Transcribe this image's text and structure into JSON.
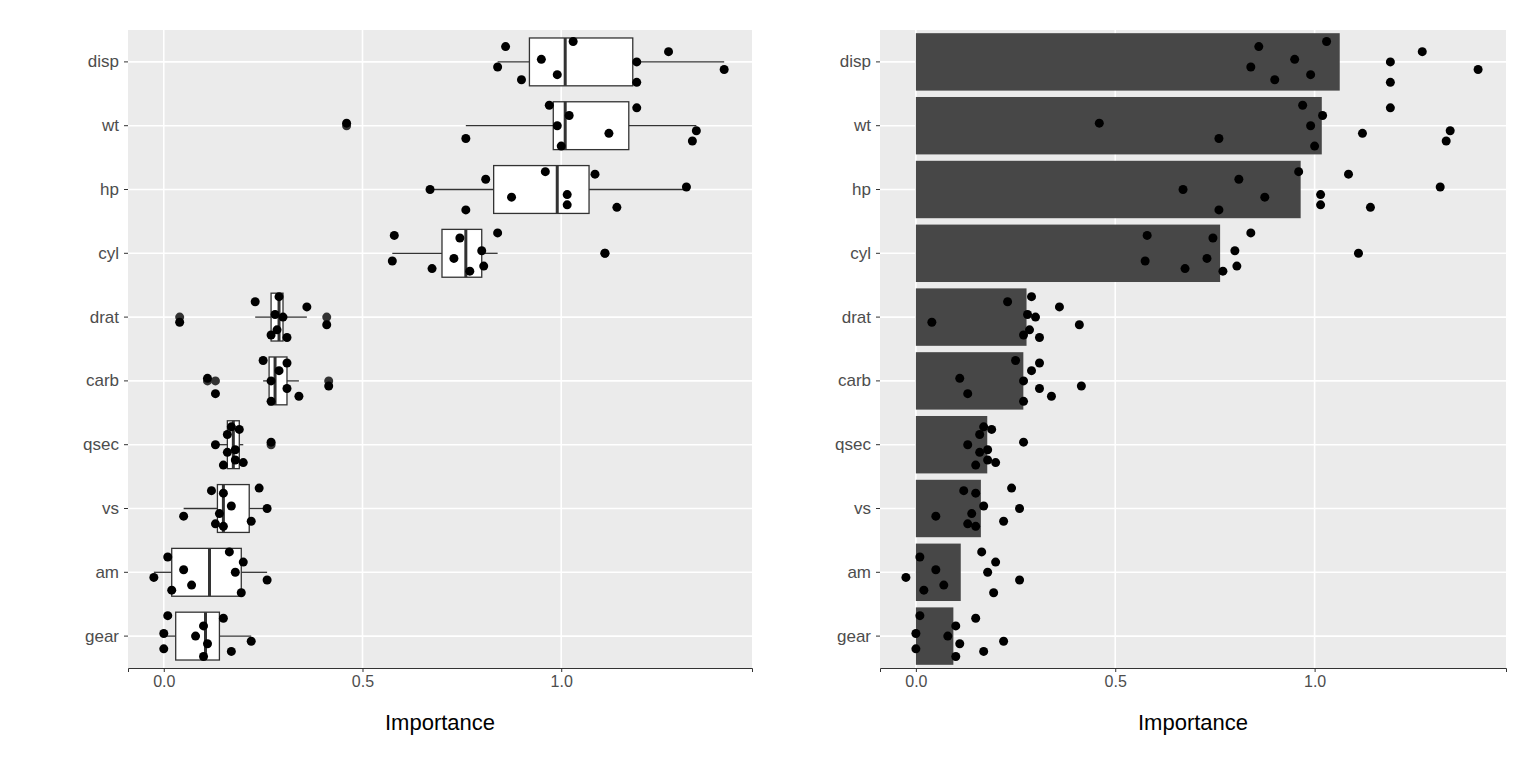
{
  "chart_data": [
    {
      "type": "box",
      "orientation": "horizontal",
      "x_label": "Importance",
      "categories": [
        "disp",
        "wt",
        "hp",
        "cyl",
        "drat",
        "carb",
        "qsec",
        "vs",
        "am",
        "gear"
      ],
      "xlim": [
        -0.09,
        1.48
      ],
      "xticks": [
        {
          "value": 0,
          "label": "0.0"
        },
        {
          "value": 0.5,
          "label": "0.5"
        },
        {
          "value": 1,
          "label": "1.0"
        }
      ],
      "grid": true,
      "boxes": [
        {
          "q1": 0.92,
          "median": 1.01,
          "q3": 1.18,
          "whisker_low": 0.84,
          "whisker_high": 1.41,
          "outliers": []
        },
        {
          "q1": 0.98,
          "median": 1.01,
          "q3": 1.17,
          "whisker_low": 0.76,
          "whisker_high": 1.34,
          "outliers": [
            0.46
          ]
        },
        {
          "q1": 0.83,
          "median": 0.99,
          "q3": 1.07,
          "whisker_low": 0.67,
          "whisker_high": 1.31,
          "outliers": []
        },
        {
          "q1": 0.7,
          "median": 0.76,
          "q3": 0.8,
          "whisker_low": 0.575,
          "whisker_high": 0.84,
          "outliers": [
            1.11
          ]
        },
        {
          "q1": 0.27,
          "median": 0.29,
          "q3": 0.3,
          "whisker_low": 0.23,
          "whisker_high": 0.36,
          "outliers": [
            0.04,
            0.41
          ]
        },
        {
          "q1": 0.265,
          "median": 0.28,
          "q3": 0.31,
          "whisker_low": 0.25,
          "whisker_high": 0.34,
          "outliers": [
            0.11,
            0.13,
            0.415
          ]
        },
        {
          "q1": 0.16,
          "median": 0.175,
          "q3": 0.19,
          "whisker_low": 0.13,
          "whisker_high": 0.2,
          "outliers": [
            0.27
          ]
        },
        {
          "q1": 0.135,
          "median": 0.15,
          "q3": 0.215,
          "whisker_low": 0.05,
          "whisker_high": 0.26,
          "outliers": []
        },
        {
          "q1": 0.02,
          "median": 0.115,
          "q3": 0.195,
          "whisker_low": -0.025,
          "whisker_high": 0.26,
          "outliers": []
        },
        {
          "q1": 0.03,
          "median": 0.105,
          "q3": 0.14,
          "whisker_low": 0.0,
          "whisker_high": 0.22,
          "outliers": []
        }
      ],
      "points": [
        [
          0.84,
          0.86,
          0.9,
          0.95,
          0.99,
          1.03,
          1.19,
          1.19,
          1.27,
          1.41
        ],
        [
          0.46,
          0.76,
          0.97,
          0.99,
          1.0,
          1.02,
          1.12,
          1.19,
          1.33,
          1.34
        ],
        [
          0.67,
          0.76,
          0.81,
          0.875,
          0.96,
          1.015,
          1.015,
          1.085,
          1.14,
          1.315
        ],
        [
          0.575,
          0.58,
          0.675,
          0.73,
          0.745,
          0.77,
          0.8,
          0.805,
          0.84,
          1.11
        ],
        [
          0.04,
          0.23,
          0.27,
          0.28,
          0.285,
          0.29,
          0.3,
          0.31,
          0.36,
          0.41
        ],
        [
          0.11,
          0.13,
          0.25,
          0.27,
          0.27,
          0.29,
          0.31,
          0.31,
          0.34,
          0.415
        ],
        [
          0.13,
          0.15,
          0.16,
          0.16,
          0.17,
          0.18,
          0.18,
          0.19,
          0.2,
          0.27
        ],
        [
          0.05,
          0.12,
          0.13,
          0.14,
          0.15,
          0.15,
          0.17,
          0.22,
          0.24,
          0.26
        ],
        [
          -0.025,
          0.01,
          0.02,
          0.05,
          0.07,
          0.165,
          0.18,
          0.195,
          0.2,
          0.26
        ],
        [
          0.0,
          0.0,
          0.01,
          0.08,
          0.1,
          0.1,
          0.11,
          0.15,
          0.17,
          0.22
        ]
      ]
    },
    {
      "type": "bar",
      "orientation": "horizontal",
      "x_label": "Importance",
      "categories": [
        "disp",
        "wt",
        "hp",
        "cyl",
        "drat",
        "carb",
        "qsec",
        "vs",
        "am",
        "gear"
      ],
      "values": [
        1.063,
        1.018,
        0.965,
        0.763,
        0.2775,
        0.2695,
        0.179,
        0.163,
        0.1125,
        0.094
      ],
      "color": "#474747",
      "xlim": [
        -0.09,
        1.48
      ],
      "xticks": [
        {
          "value": 0,
          "label": "0.0"
        },
        {
          "value": 0.5,
          "label": "0.5"
        },
        {
          "value": 1,
          "label": "1.0"
        }
      ],
      "grid": true,
      "points": [
        [
          0.84,
          0.86,
          0.9,
          0.95,
          0.99,
          1.03,
          1.19,
          1.19,
          1.27,
          1.41
        ],
        [
          0.46,
          0.76,
          0.97,
          0.99,
          1.0,
          1.02,
          1.12,
          1.19,
          1.33,
          1.34
        ],
        [
          0.67,
          0.76,
          0.81,
          0.875,
          0.96,
          1.015,
          1.015,
          1.085,
          1.14,
          1.315
        ],
        [
          0.575,
          0.58,
          0.675,
          0.73,
          0.745,
          0.77,
          0.8,
          0.805,
          0.84,
          1.11
        ],
        [
          0.04,
          0.23,
          0.27,
          0.28,
          0.285,
          0.29,
          0.3,
          0.31,
          0.36,
          0.41
        ],
        [
          0.11,
          0.13,
          0.25,
          0.27,
          0.27,
          0.29,
          0.31,
          0.31,
          0.34,
          0.415
        ],
        [
          0.13,
          0.15,
          0.16,
          0.16,
          0.17,
          0.18,
          0.18,
          0.19,
          0.2,
          0.27
        ],
        [
          0.05,
          0.12,
          0.13,
          0.14,
          0.15,
          0.15,
          0.17,
          0.22,
          0.24,
          0.26
        ],
        [
          -0.025,
          0.01,
          0.02,
          0.05,
          0.07,
          0.165,
          0.18,
          0.195,
          0.2,
          0.26
        ],
        [
          0.0,
          0.0,
          0.01,
          0.08,
          0.1,
          0.1,
          0.11,
          0.15,
          0.17,
          0.22
        ]
      ]
    }
  ]
}
